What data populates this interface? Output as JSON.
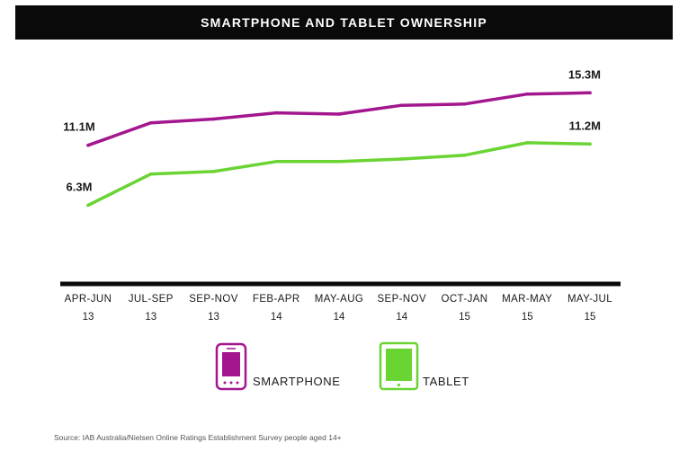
{
  "title": "SMARTPHONE AND TABLET OWNERSHIP",
  "source": "Source: IAB Australia/Nielsen Online Ratings Establishment Survey people aged 14+",
  "colors": {
    "smartphone": "#a3168e",
    "tablet": "#6ad433",
    "axis": "#0a0a0a",
    "title_bg": "#0a0a0a"
  },
  "legend": [
    {
      "label": "SMARTPHONE",
      "icon": "smartphone-icon"
    },
    {
      "label": "TABLET",
      "icon": "tablet-icon"
    }
  ],
  "chart_data": {
    "type": "line",
    "title": "SMARTPHONE AND TABLET OWNERSHIP",
    "categories": [
      {
        "line1": "APR-JUN",
        "line2": "13"
      },
      {
        "line1": "JUL-SEP",
        "line2": "13"
      },
      {
        "line1": "SEP-NOV",
        "line2": "13"
      },
      {
        "line1": "FEB-APR",
        "line2": "14"
      },
      {
        "line1": "MAY-AUG",
        "line2": "14"
      },
      {
        "line1": "SEP-NOV",
        "line2": "14"
      },
      {
        "line1": "OCT-JAN",
        "line2": "15"
      },
      {
        "line1": "MAR-MAY",
        "line2": "15"
      },
      {
        "line1": "MAY-JUL",
        "line2": "15"
      }
    ],
    "unit": "M",
    "series": [
      {
        "name": "SMARTPHONE",
        "color": "#a3168e",
        "values": [
          11.1,
          12.9,
          13.2,
          13.7,
          13.6,
          14.3,
          14.4,
          15.2,
          15.3
        ]
      },
      {
        "name": "TABLET",
        "color": "#6ad433",
        "values": [
          6.3,
          8.8,
          9.0,
          9.8,
          9.8,
          10.0,
          10.3,
          11.3,
          11.2
        ]
      }
    ],
    "data_labels": [
      {
        "series": 0,
        "index": 0,
        "text": "11.1M"
      },
      {
        "series": 0,
        "index": 8,
        "text": "15.3M"
      },
      {
        "series": 1,
        "index": 0,
        "text": "6.3M"
      },
      {
        "series": 1,
        "index": 8,
        "text": "11.2M"
      }
    ],
    "ylim": [
      0,
      16.5
    ],
    "grid": false,
    "legend_position": "bottom"
  }
}
